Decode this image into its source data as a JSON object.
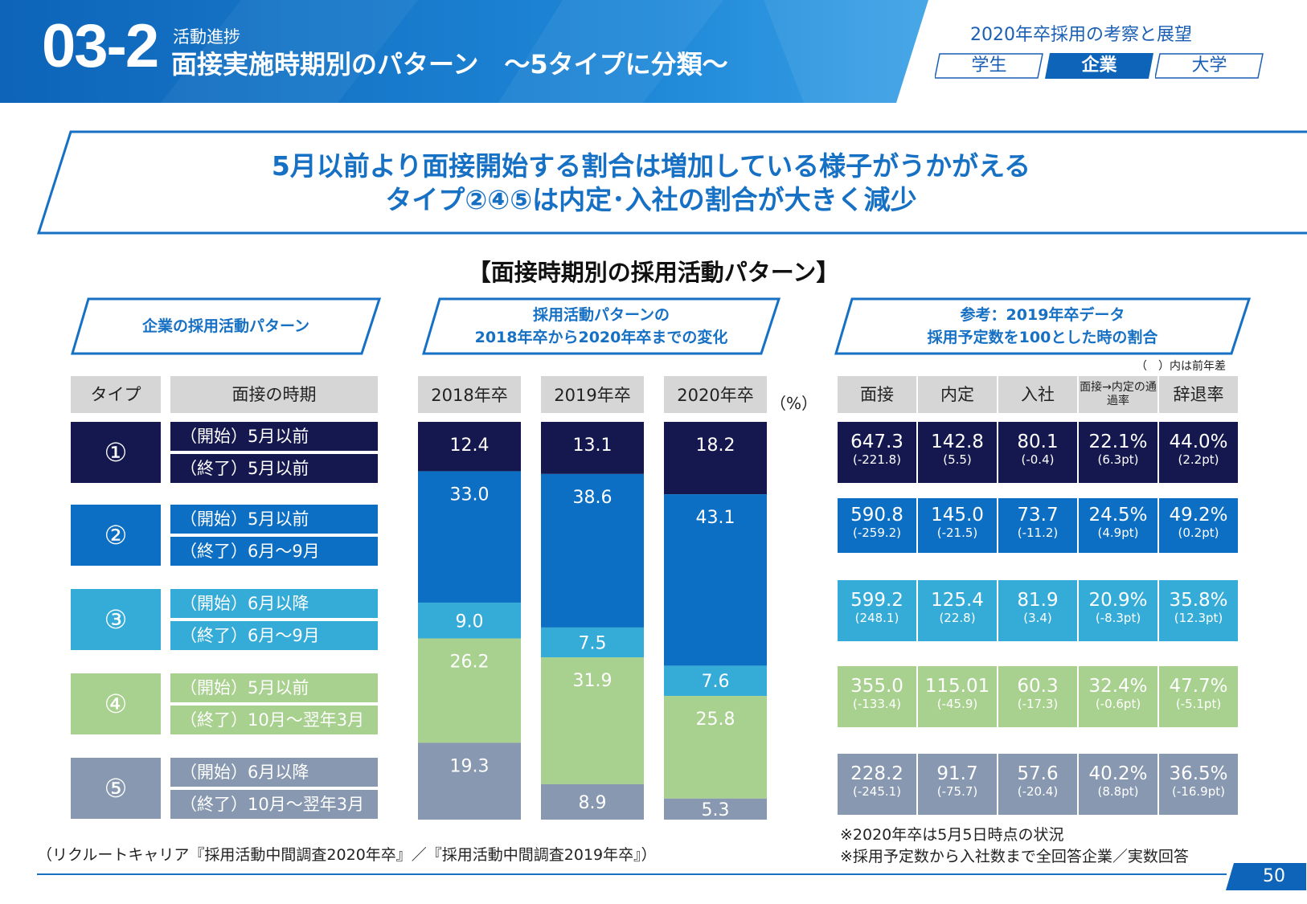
{
  "header": {
    "section_number": "03-2",
    "section_subtitle": "活動進捗",
    "section_title": "面接実施時期別のパターン　～5タイプに分類～",
    "series_title": "2020年卒採用の考察と展望",
    "tabs": [
      {
        "label": "学生",
        "active": false
      },
      {
        "label": "企業",
        "active": true
      },
      {
        "label": "大学",
        "active": false
      }
    ]
  },
  "headline": {
    "line1": "5月以前より面接開始する割合は増加している様子がうかがえる",
    "line2": "タイプ②④⑤は内定･入社の割合が大きく減少"
  },
  "chart_title": "【面接時期別の採用活動パターン】",
  "left_section": {
    "label": "企業の採用活動パターン",
    "col_type": "タイプ",
    "col_period": "面接の時期",
    "types": [
      {
        "symbol": "①",
        "start": "（開始）5月以前",
        "end": "（終了）5月以前",
        "color": "#15184f"
      },
      {
        "symbol": "②",
        "start": "（開始）5月以前",
        "end": "（終了）6月～9月",
        "color": "#0c6fc3"
      },
      {
        "symbol": "③",
        "start": "（開始）6月以降",
        "end": "（終了）6月～9月",
        "color": "#35acd8"
      },
      {
        "symbol": "④",
        "start": "（開始）5月以前",
        "end": "（終了）10月～翌年3月",
        "color": "#a8d08e"
      },
      {
        "symbol": "⑤",
        "start": "（開始）6月以降",
        "end": "（終了）10月～翌年3月",
        "color": "#8898b0"
      }
    ]
  },
  "middle_section": {
    "label_line1": "採用活動パターンの",
    "label_line2": "2018年卒から2020年卒までの変化",
    "unit": "（%）"
  },
  "chart_data": {
    "type": "bar",
    "stacked": true,
    "normalized_to": 100,
    "categories": [
      "2018年卒",
      "2019年卒",
      "2020年卒"
    ],
    "series": [
      {
        "name": "①",
        "values": [
          12.4,
          13.1,
          18.2
        ]
      },
      {
        "name": "②",
        "values": [
          33.0,
          38.6,
          43.1
        ]
      },
      {
        "name": "③",
        "values": [
          9.0,
          7.5,
          7.6
        ]
      },
      {
        "name": "④",
        "values": [
          26.2,
          31.9,
          25.8
        ]
      },
      {
        "name": "⑤",
        "values": [
          19.3,
          8.9,
          5.3
        ]
      }
    ],
    "ylabel": "（%）",
    "ylim": [
      0,
      100
    ]
  },
  "right_section": {
    "label_line1": "参考：2019年卒データ",
    "label_line2": "採用予定数を100とした時の割合",
    "note": "（　）内は前年差",
    "columns": [
      "面接",
      "内定",
      "入社",
      "面接→内定の通過率",
      "辞退率"
    ],
    "rows": [
      [
        {
          "v": "647.3",
          "d": "(-221.8)"
        },
        {
          "v": "142.8",
          "d": "(5.5)"
        },
        {
          "v": "80.1",
          "d": "(-0.4)"
        },
        {
          "v": "22.1%",
          "d": "(6.3pt)"
        },
        {
          "v": "44.0%",
          "d": "(2.2pt)"
        }
      ],
      [
        {
          "v": "590.8",
          "d": "(-259.2)"
        },
        {
          "v": "145.0",
          "d": "(-21.5)"
        },
        {
          "v": "73.7",
          "d": "(-11.2)"
        },
        {
          "v": "24.5%",
          "d": "(4.9pt)"
        },
        {
          "v": "49.2%",
          "d": "(0.2pt)"
        }
      ],
      [
        {
          "v": "599.2",
          "d": "(248.1)"
        },
        {
          "v": "125.4",
          "d": "(22.8)"
        },
        {
          "v": "81.9",
          "d": "(3.4)"
        },
        {
          "v": "20.9%",
          "d": "(-8.3pt)"
        },
        {
          "v": "35.8%",
          "d": "(12.3pt)"
        }
      ],
      [
        {
          "v": "355.0",
          "d": "(-133.4)"
        },
        {
          "v": "115.01",
          "d": "(-45.9)"
        },
        {
          "v": "60.3",
          "d": "(-17.3)"
        },
        {
          "v": "32.4%",
          "d": "(-0.6pt)"
        },
        {
          "v": "47.7%",
          "d": "(-5.1pt)"
        }
      ],
      [
        {
          "v": "228.2",
          "d": "(-245.1)"
        },
        {
          "v": "91.7",
          "d": "(-75.7)"
        },
        {
          "v": "57.6",
          "d": "(-20.4)"
        },
        {
          "v": "40.2%",
          "d": "(8.8pt)"
        },
        {
          "v": "36.5%",
          "d": "(-16.9pt)"
        }
      ]
    ]
  },
  "footer": {
    "source": "（リクルートキャリア『採用活動中間調査2020年卒』／『採用活動中間調査2019年卒』）",
    "note1": "※2020年卒は5月5日時点の状況",
    "note2": "※採用予定数から入社数まで全回答企業／実数回答",
    "page_number": "50"
  }
}
